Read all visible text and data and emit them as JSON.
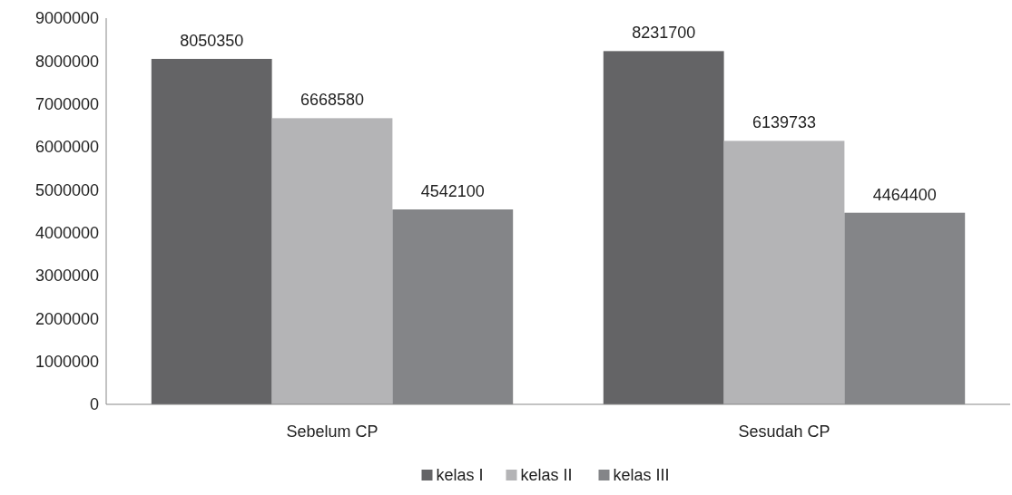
{
  "chart_data": {
    "type": "bar",
    "categories": [
      "Sebelum CP",
      "Sesudah CP"
    ],
    "series": [
      {
        "name": "kelas I",
        "color": "#646466",
        "values": [
          8050350,
          8231700
        ]
      },
      {
        "name": "kelas II",
        "color": "#b4b4b6",
        "values": [
          6668580,
          6139733
        ]
      },
      {
        "name": "kelas III",
        "color": "#848588",
        "values": [
          4542100,
          4464400
        ]
      }
    ],
    "ylim": [
      0,
      9000000
    ],
    "yticks": [
      0,
      1000000,
      2000000,
      3000000,
      4000000,
      5000000,
      6000000,
      7000000,
      8000000,
      9000000
    ],
    "data_labels": true,
    "legend": "bottom"
  }
}
